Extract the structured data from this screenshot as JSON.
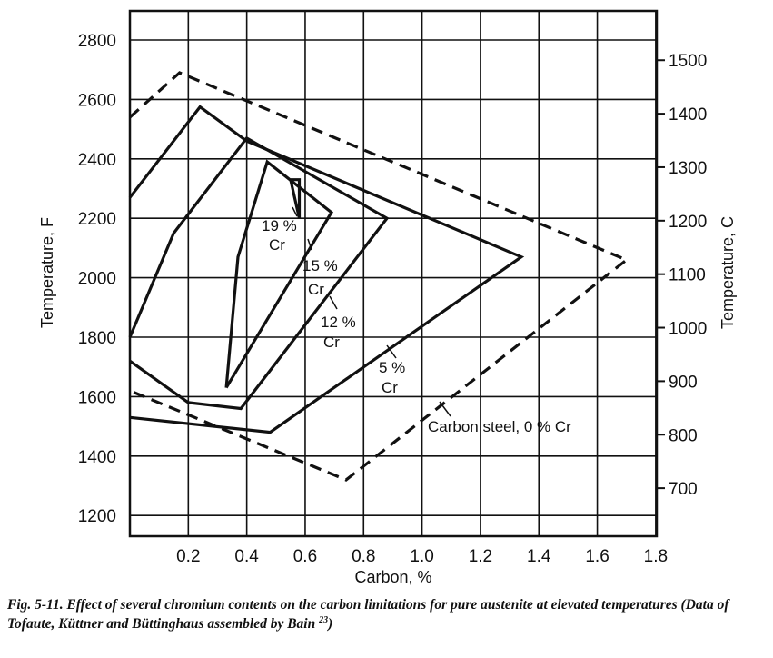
{
  "chart_data": {
    "type": "line",
    "xlabel": "Carbon, %",
    "ylabel_left": "Temperature, F",
    "ylabel_right": "Temperature, C",
    "xlim": [
      0,
      1.8
    ],
    "ylim_left": [
      1100,
      2900
    ],
    "grid": true,
    "x_ticks": [
      "0.2",
      "0.4",
      "0.6",
      "0.8",
      "1.0",
      "1.2",
      "1.4",
      "1.6",
      "1.8"
    ],
    "y_ticks_left": [
      "1200",
      "1400",
      "1600",
      "1800",
      "2000",
      "2200",
      "2400",
      "2600",
      "2800"
    ],
    "y_ticks_right": [
      "700",
      "800",
      "900",
      "1000",
      "1100",
      "1200",
      "1300",
      "1400",
      "1500"
    ],
    "series": [
      {
        "name": "Carbon steel, 0% Cr",
        "style": "dashed",
        "points": [
          [
            0,
            2540
          ],
          [
            0.17,
            2690
          ],
          [
            1.7,
            2060
          ],
          [
            0.74,
            1320
          ],
          [
            0,
            1620
          ]
        ]
      },
      {
        "name": "5% Cr",
        "style": "solid",
        "points": [
          [
            0,
            2270
          ],
          [
            0.24,
            2575
          ],
          [
            0.4,
            2460
          ],
          [
            1.34,
            2070
          ],
          [
            0.48,
            1480
          ],
          [
            0,
            1530
          ]
        ]
      },
      {
        "name": "12% Cr",
        "style": "solid",
        "points": [
          [
            0,
            1800
          ],
          [
            0.15,
            2150
          ],
          [
            0.4,
            2470
          ],
          [
            0.88,
            2200
          ],
          [
            0.38,
            1560
          ],
          [
            0.2,
            1580
          ],
          [
            0,
            1720
          ]
        ]
      },
      {
        "name": "15% Cr",
        "style": "solid",
        "points": [
          [
            0.33,
            1630
          ],
          [
            0.37,
            2070
          ],
          [
            0.47,
            2390
          ],
          [
            0.69,
            2220
          ],
          [
            0.33,
            1630
          ]
        ]
      },
      {
        "name": "19% Cr",
        "style": "solid",
        "points": [
          [
            0.55,
            2330
          ],
          [
            0.58,
            2200
          ],
          [
            0.58,
            2330
          ],
          [
            0.55,
            2330
          ]
        ]
      }
    ],
    "annotations": [
      {
        "line1": "19 %",
        "line2": "Cr"
      },
      {
        "line1": "15 %",
        "line2": "Cr"
      },
      {
        "line1": "12 %",
        "line2": "Cr"
      },
      {
        "line1": "5 %",
        "line2": "Cr"
      },
      {
        "line1": "Carbon steel, 0 % Cr",
        "line2": ""
      }
    ]
  },
  "caption": {
    "fig_label": "Fig. 5-11.",
    "text": " Effect of several chromium contents on the carbon limitations for pure austenite at elevated temperatures (Data of Tofaute, Küttner and Büttinghaus assembled by Bain ",
    "ref": "23",
    "close": ")"
  }
}
